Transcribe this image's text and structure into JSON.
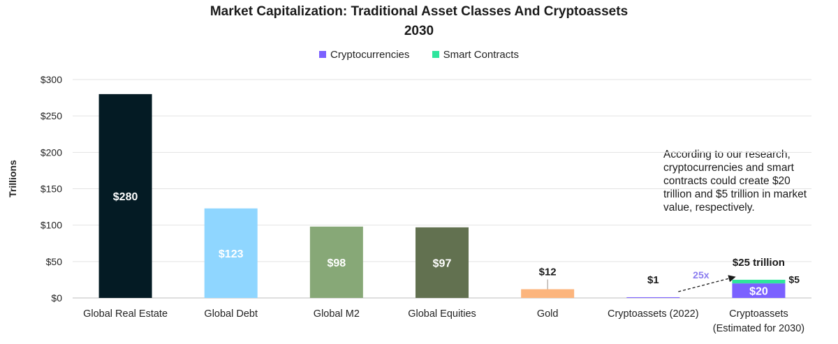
{
  "chart_data": {
    "type": "bar",
    "title": "Market Capitalization: Traditional Asset Classes And Cryptoassets",
    "subtitle": "2030",
    "ylabel": "Trillions",
    "ylim": [
      0,
      300
    ],
    "yticks": [
      {
        "value": 0,
        "label": "$0"
      },
      {
        "value": 50,
        "label": "$50"
      },
      {
        "value": 100,
        "label": "$100"
      },
      {
        "value": 150,
        "label": "$150"
      },
      {
        "value": 200,
        "label": "$200"
      },
      {
        "value": 250,
        "label": "$250"
      },
      {
        "value": 300,
        "label": "$300"
      }
    ],
    "grid": true,
    "legend": {
      "placement": "top-center",
      "entries": [
        {
          "name": "Cryptocurrencies",
          "color": "#7b61ff"
        },
        {
          "name": "Smart Contracts",
          "color": "#2ee59d"
        }
      ]
    },
    "categories": [
      {
        "label": "Global Real Estate",
        "value": 280,
        "value_label": "$280",
        "color": "#041b24",
        "label_inside": true,
        "label_color": "#ffffff"
      },
      {
        "label": "Global Debt",
        "value": 123,
        "value_label": "$123",
        "color": "#8fd6ff",
        "label_inside": true,
        "label_color": "#ffffff"
      },
      {
        "label": "Global M2",
        "value": 98,
        "value_label": "$98",
        "color": "#87a877",
        "label_inside": true,
        "label_color": "#ffffff"
      },
      {
        "label": "Global Equities",
        "value": 97,
        "value_label": "$97",
        "color": "#627150",
        "label_inside": true,
        "label_color": "#ffffff"
      },
      {
        "label": "Gold",
        "value": 12,
        "value_label": "$12",
        "color": "#fcb57d",
        "label_inside": false,
        "label_color": "#1a1a1a"
      },
      {
        "label": "Cryptoassets (2022)",
        "value": 1,
        "value_label": "$1",
        "color": "#7b61ff",
        "label_inside": false,
        "label_color": "#1a1a1a"
      },
      {
        "label": "Cryptoassets",
        "label_line2": "(Estimated for 2030)",
        "stacked": true,
        "segments": [
          {
            "name": "Cryptocurrencies",
            "value": 20,
            "value_label": "$20",
            "color": "#7b61ff"
          },
          {
            "name": "Smart Contracts",
            "value": 5,
            "value_label": "$5",
            "color": "#2ee59d"
          }
        ],
        "total_label": "$25 trillion"
      }
    ],
    "annotations": [
      {
        "text": "25x",
        "color": "#8a7cf0"
      },
      {
        "text": "According to our research, cryptocurrencies and smart contracts could create $20 trillion and $5 trillion in market value, respectively."
      }
    ]
  }
}
